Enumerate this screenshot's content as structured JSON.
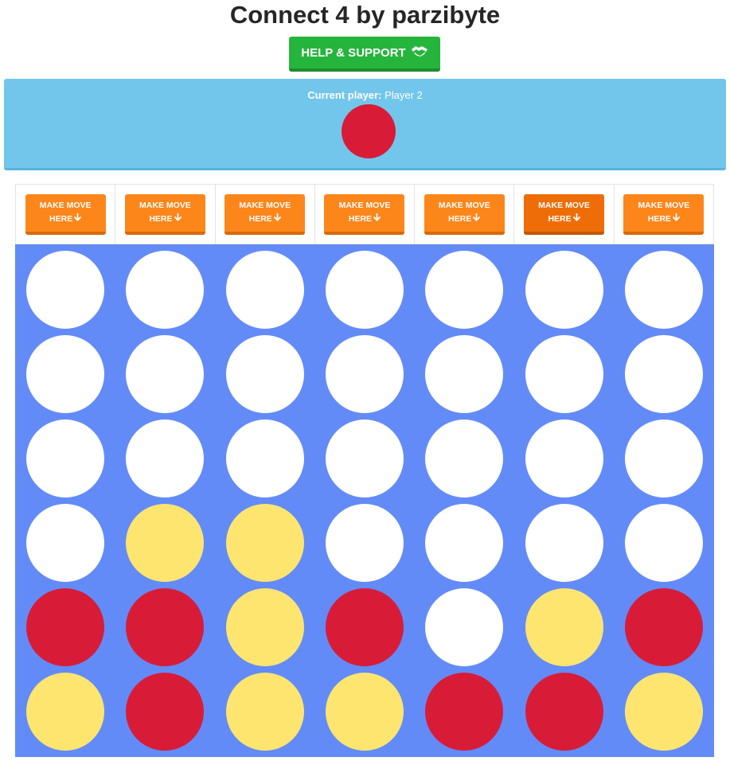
{
  "title": "Connect 4 by parzibyte",
  "help_button": {
    "label": "HELP & SUPPORT",
    "icon": "handshake-icon"
  },
  "status": {
    "label": "Current player:",
    "player": "Player 2",
    "current_color": "red"
  },
  "move_buttons": [
    {
      "line1": "MAKE MOVE",
      "line2": "HERE",
      "icon": "arrow-down-icon",
      "active": false
    },
    {
      "line1": "MAKE MOVE",
      "line2": "HERE",
      "icon": "arrow-down-icon",
      "active": false
    },
    {
      "line1": "MAKE MOVE",
      "line2": "HERE",
      "icon": "arrow-down-icon",
      "active": false
    },
    {
      "line1": "MAKE MOVE",
      "line2": "HERE",
      "icon": "arrow-down-icon",
      "active": false
    },
    {
      "line1": "MAKE MOVE",
      "line2": "HERE",
      "icon": "arrow-down-icon",
      "active": false
    },
    {
      "line1": "MAKE MOVE",
      "line2": "HERE",
      "icon": "arrow-down-icon",
      "active": true
    },
    {
      "line1": "MAKE MOVE",
      "line2": "HERE",
      "icon": "arrow-down-icon",
      "active": false
    }
  ],
  "board": [
    [
      "empty",
      "empty",
      "empty",
      "empty",
      "empty",
      "empty",
      "empty"
    ],
    [
      "empty",
      "empty",
      "empty",
      "empty",
      "empty",
      "empty",
      "empty"
    ],
    [
      "empty",
      "empty",
      "empty",
      "empty",
      "empty",
      "empty",
      "empty"
    ],
    [
      "empty",
      "yellow",
      "yellow",
      "empty",
      "empty",
      "empty",
      "empty"
    ],
    [
      "red",
      "red",
      "yellow",
      "red",
      "empty",
      "yellow",
      "red"
    ],
    [
      "yellow",
      "red",
      "yellow",
      "yellow",
      "red",
      "red",
      "yellow"
    ]
  ],
  "colors": {
    "red": "#d81c38",
    "yellow": "#fde56f",
    "empty": "#ffffff",
    "board": "#638bf7",
    "status_bg": "#73c6eb",
    "move_button": "#fd861b",
    "help_button": "#26b53c"
  }
}
